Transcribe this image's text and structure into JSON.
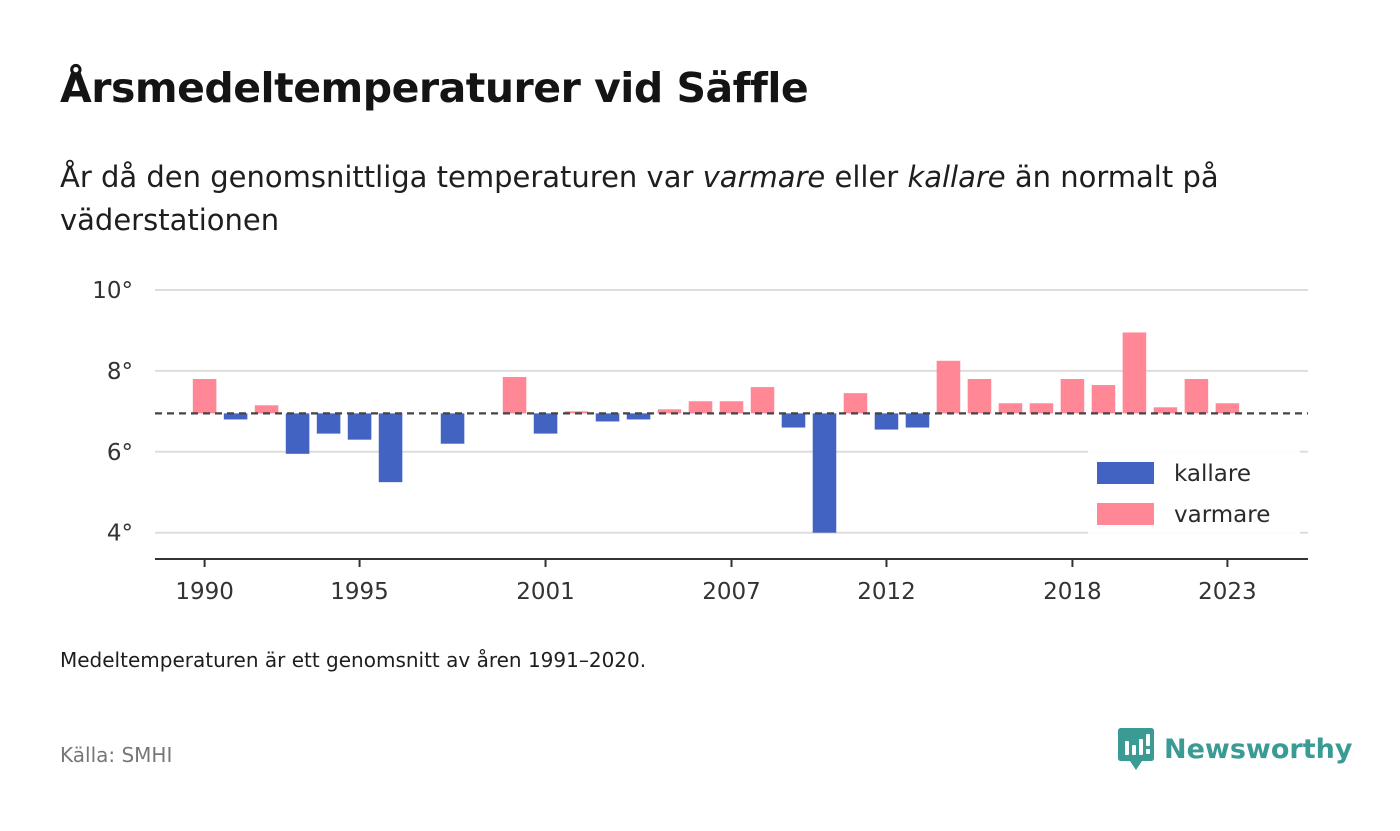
{
  "title": "Årsmedeltemperaturer vid Säffle",
  "subtitle": {
    "part1": "År då den genomsnittliga temperaturen var ",
    "warm_word": "varmare",
    "part2": " eller ",
    "cold_word": "kallare",
    "part3": " än normalt på väderstationen"
  },
  "note": "Medeltemperaturen är ett genomsnitt av åren 1991–2020.",
  "source": "Källa: SMHI",
  "brand": {
    "name": "Newsworthy",
    "icon": "newsworthy-logo-icon"
  },
  "colors": {
    "warmer": "#ff8796",
    "colder": "#4263c2",
    "grid": "#dddddd",
    "axis": "#333333",
    "brand": "#3a9a94"
  },
  "chart_data": {
    "type": "bar",
    "baseline": 6.95,
    "ylim": [
      3.35,
      10
    ],
    "xlim": [
      1988.4,
      2025.6
    ],
    "yticks": [
      {
        "value": 10,
        "label": "10°"
      },
      {
        "value": 8,
        "label": "8°"
      },
      {
        "value": 6,
        "label": "6°"
      },
      {
        "value": 4,
        "label": "4°"
      }
    ],
    "xticks": [
      {
        "value": 1990,
        "label": "1990"
      },
      {
        "value": 1995,
        "label": "1995"
      },
      {
        "value": 2001,
        "label": "2001"
      },
      {
        "value": 2007,
        "label": "2007"
      },
      {
        "value": 2012,
        "label": "2012"
      },
      {
        "value": 2018,
        "label": "2018"
      },
      {
        "value": 2023,
        "label": "2023"
      }
    ],
    "legend": [
      {
        "name": "kallare",
        "color": "#4263c2"
      },
      {
        "name": "varmare",
        "color": "#ff8796"
      }
    ],
    "legend_position": "bottom-right",
    "grid": true,
    "years": [
      1990,
      1991,
      1992,
      1993,
      1994,
      1995,
      1996,
      1997,
      1998,
      1999,
      2000,
      2001,
      2002,
      2003,
      2004,
      2005,
      2006,
      2007,
      2008,
      2009,
      2010,
      2011,
      2012,
      2013,
      2014,
      2015,
      2016,
      2017,
      2018,
      2019,
      2020,
      2021,
      2022,
      2023
    ],
    "values": [
      7.8,
      6.8,
      7.15,
      5.95,
      6.45,
      6.3,
      5.25,
      null,
      6.2,
      null,
      7.85,
      6.45,
      7.0,
      6.75,
      6.8,
      7.05,
      7.25,
      7.25,
      7.6,
      6.6,
      4.0,
      7.45,
      6.55,
      6.6,
      8.25,
      7.8,
      7.2,
      7.2,
      7.8,
      7.65,
      8.95,
      7.1,
      7.8,
      7.2
    ]
  }
}
